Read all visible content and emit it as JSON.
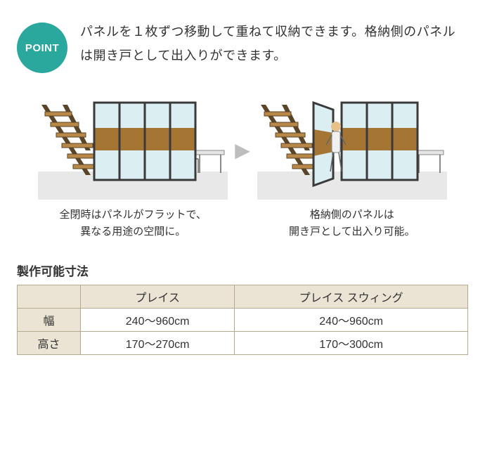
{
  "point": {
    "badge_label": "POINT",
    "badge_color": "#2aa89e",
    "description": "パネルを１枚ずつ移動して重ねて収納できます。格納側のパネルは開き戸として出入りができます。"
  },
  "figures": {
    "left_caption_line1": "全閉時はパネルがフラットで、",
    "left_caption_line2": "異なる用途の空間に。",
    "right_caption_line1": "格納側のパネルは",
    "right_caption_line2": "開き戸として出入り可能。",
    "arrow_glyph": "▶",
    "colors": {
      "panel_frame": "#3a3a3a",
      "panel_glass": "#dbeef2",
      "panel_band": "#a57533",
      "stair_wood": "#b88848",
      "stair_edge": "#5a4528",
      "floor": "#e8e8e8",
      "wall": "#ffffff",
      "table_top": "#e6e6e6",
      "person_apron": "#f0f0f0",
      "person_head": "#e8c08a"
    }
  },
  "spec_table": {
    "title": "製作可能寸法",
    "header_bg": "#ebe4d4",
    "border_color": "#b5a990",
    "columns": [
      "プレイス",
      "プレイス スウィング"
    ],
    "rows": [
      {
        "label": "幅",
        "values": [
          "240～960cm",
          "240～960cm"
        ]
      },
      {
        "label": "高さ",
        "values": [
          "170～270cm",
          "170～300cm"
        ]
      }
    ]
  }
}
